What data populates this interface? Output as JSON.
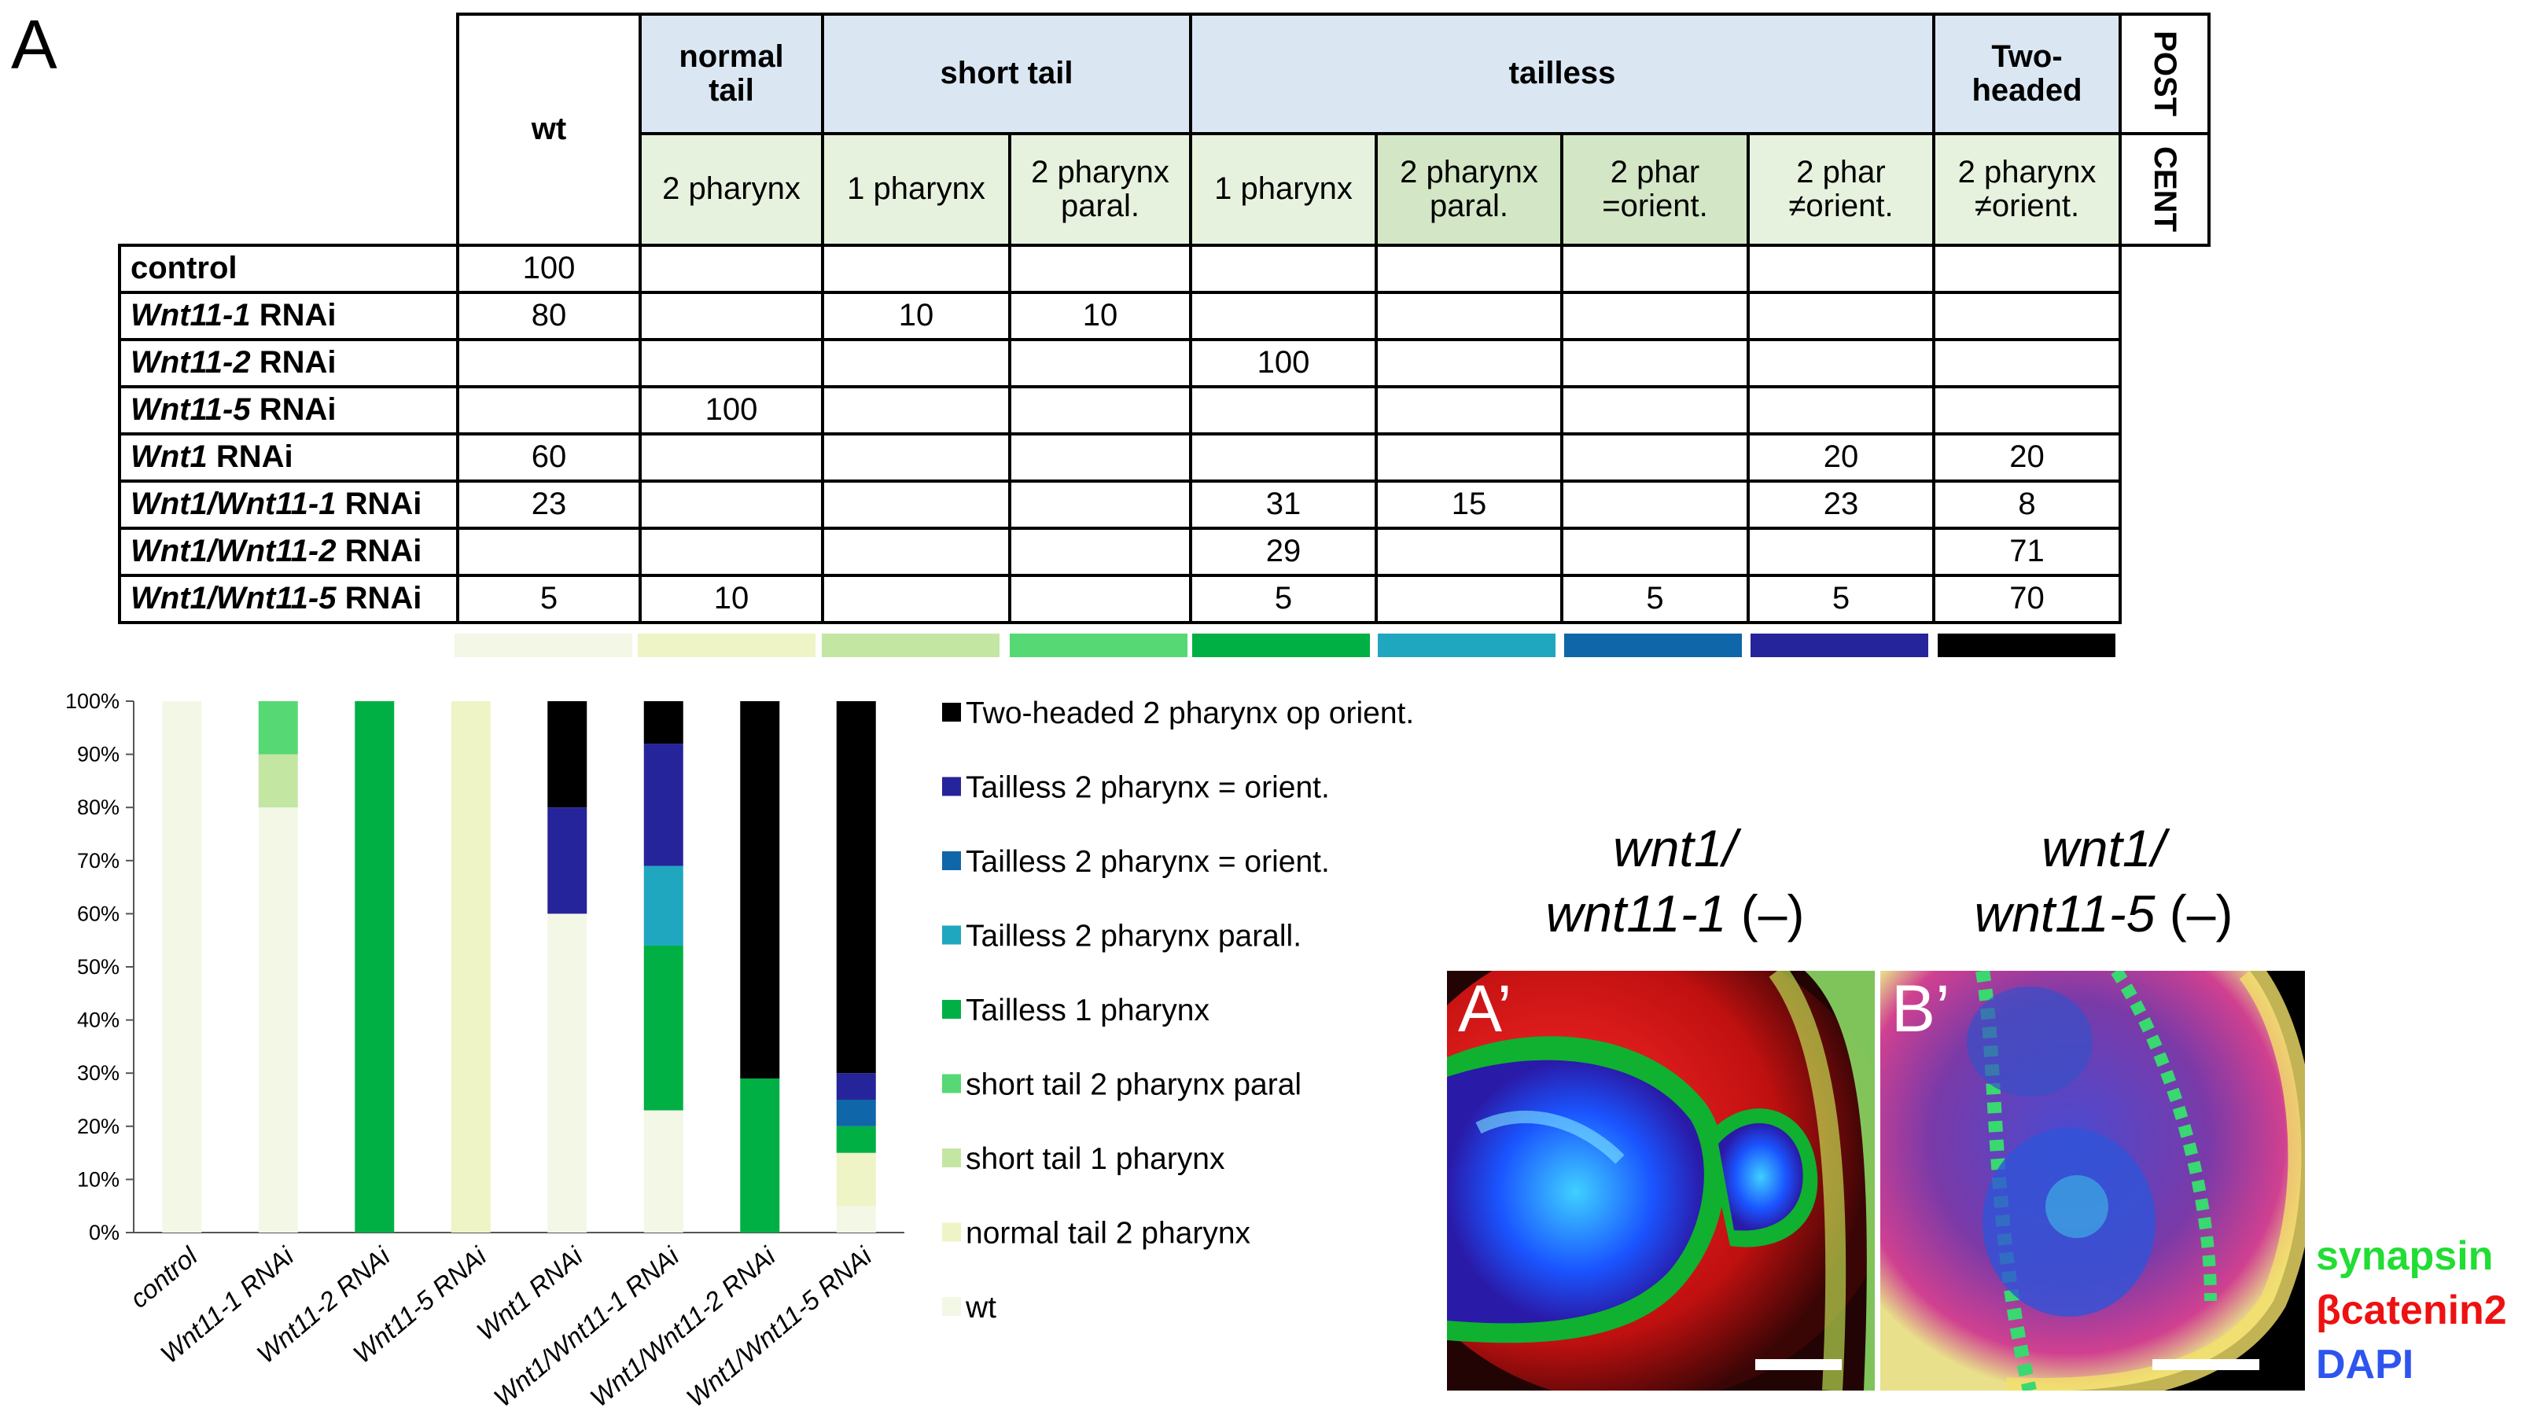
{
  "panel_label": "A",
  "table": {
    "wt_label": "wt",
    "groups": {
      "normal_tail": "normal tail",
      "short_tail": "short tail",
      "tailless": "tailless",
      "two_headed": "Two-headed"
    },
    "side_labels": {
      "post": "POST",
      "cent": "CENT"
    },
    "subheaders": [
      "2 pharynx",
      "1 pharynx",
      "2 pharynx paral.",
      "1 pharynx",
      "2 pharynx paral.",
      "2 phar =orient.",
      "2 phar ≠orient.",
      "2 pharynx ≠orient."
    ],
    "rows": [
      {
        "pre": "",
        "italic": "",
        "post": "control",
        "cells": [
          "100",
          "",
          "",
          "",
          "",
          "",
          "",
          "",
          ""
        ]
      },
      {
        "pre": "",
        "italic": "Wnt11-1",
        "post": " RNAi",
        "cells": [
          "80",
          "",
          "10",
          "10",
          "",
          "",
          "",
          "",
          ""
        ]
      },
      {
        "pre": "",
        "italic": "Wnt11-2",
        "post": " RNAi",
        "cells": [
          "",
          "",
          "",
          "",
          "100",
          "",
          "",
          "",
          ""
        ]
      },
      {
        "pre": "",
        "italic": "Wnt11-5",
        "post": " RNAi",
        "cells": [
          "",
          "100",
          "",
          "",
          "",
          "",
          "",
          "",
          ""
        ]
      },
      {
        "pre": "",
        "italic": "Wnt1",
        "post": " RNAi",
        "cells": [
          "60",
          "",
          "",
          "",
          "",
          "",
          "",
          "20",
          "20"
        ]
      },
      {
        "pre": "",
        "italic": "Wnt1/Wnt11-1",
        "post": " RNAi",
        "cells": [
          "23",
          "",
          "",
          "",
          "31",
          "15",
          "",
          "23",
          "8"
        ]
      },
      {
        "pre": "",
        "italic": "Wnt1/Wnt11-2",
        "post": " RNAi",
        "cells": [
          "",
          "",
          "",
          "",
          "29",
          "",
          "",
          "",
          "71"
        ]
      },
      {
        "pre": "",
        "italic": "Wnt1/Wnt11-5",
        "post": " RNAi",
        "cells": [
          "5",
          "10",
          "",
          "",
          "5",
          "",
          "5",
          "5",
          "70"
        ]
      }
    ],
    "color_bars": [
      "#f3f7e6",
      "#eef4c6",
      "#c4e6a3",
      "#56d875",
      "#00b045",
      "#1fa7bf",
      "#0f66a8",
      "#26249a",
      "#000000"
    ]
  },
  "chart_data": {
    "type": "bar",
    "stacked": true,
    "categories": [
      "control",
      "Wnt11-1 RNAi",
      "Wnt11-2 RNAi",
      "Wnt11-5 RNAi",
      "Wnt1 RNAi",
      "Wnt1/Wnt11-1 RNAi",
      "Wnt1/Wnt11-2 RNAi",
      "Wnt1/Wnt11-5 RNAi"
    ],
    "series": [
      {
        "name": "wt",
        "color": "#f3f7e6",
        "values": [
          100,
          80,
          0,
          0,
          60,
          23,
          0,
          5
        ]
      },
      {
        "name": "normal tail 2 pharynx",
        "color": "#eef4c6",
        "values": [
          0,
          0,
          0,
          100,
          0,
          0,
          0,
          10
        ]
      },
      {
        "name": "short tail 1 pharynx",
        "color": "#c4e6a3",
        "values": [
          0,
          10,
          0,
          0,
          0,
          0,
          0,
          0
        ]
      },
      {
        "name": "short tail 2 pharynx paral",
        "color": "#56d875",
        "values": [
          0,
          10,
          0,
          0,
          0,
          0,
          0,
          0
        ]
      },
      {
        "name": "Tailless 1 pharynx",
        "color": "#00b045",
        "values": [
          0,
          0,
          100,
          0,
          0,
          31,
          29,
          5
        ]
      },
      {
        "name": "Tailless 2 pharynx parall.",
        "color": "#1fa7bf",
        "values": [
          0,
          0,
          0,
          0,
          0,
          15,
          0,
          0
        ]
      },
      {
        "name": "Tailless 2 pharynx = orient.",
        "color": "#0f66a8",
        "values": [
          0,
          0,
          0,
          0,
          0,
          0,
          0,
          5
        ]
      },
      {
        "name": "Tailless 2 pharynx = orient.",
        "color": "#26249a",
        "values": [
          0,
          0,
          0,
          0,
          20,
          23,
          0,
          5
        ]
      },
      {
        "name": "Two-headed 2 pharynx op orient.",
        "color": "#000000",
        "values": [
          0,
          0,
          0,
          0,
          20,
          8,
          71,
          70
        ]
      }
    ],
    "yticks": [
      "0%",
      "10%",
      "20%",
      "30%",
      "40%",
      "50%",
      "60%",
      "70%",
      "80%",
      "90%",
      "100%"
    ],
    "ylim": [
      0,
      100
    ],
    "legend_position": "right"
  },
  "images": [
    {
      "title_line1": "wnt1/",
      "title_line2": "wnt11-1",
      "title_suffix": " (–)",
      "label": "A’"
    },
    {
      "title_line1": "wnt1/",
      "title_line2": "wnt11-5",
      "title_suffix": " (–)",
      "label": "B’"
    }
  ],
  "stains": [
    {
      "text": "synapsin",
      "color": "#22dd33"
    },
    {
      "text": "βcatenin2",
      "color": "#ee1111"
    },
    {
      "text": "DAPI",
      "color": "#2d55ee"
    }
  ]
}
